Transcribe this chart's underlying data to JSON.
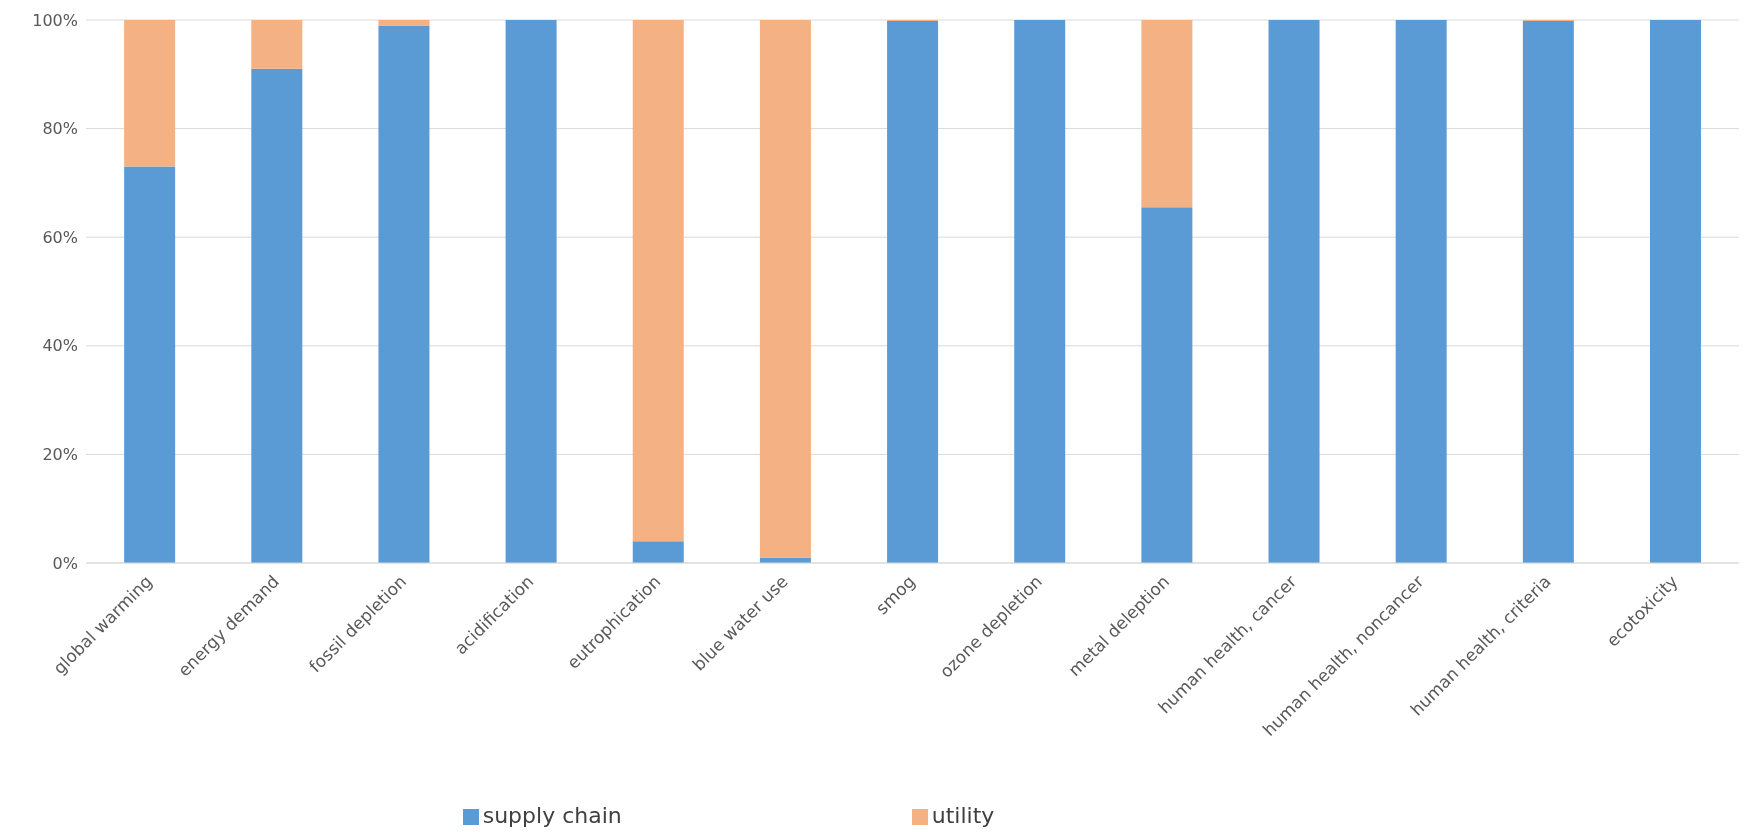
{
  "chart_data": {
    "type": "bar",
    "stacked": true,
    "categories": [
      "global warming",
      "energy demand",
      "fossil depletion",
      "acidification",
      "eutrophication",
      "blue water use",
      "smog",
      "ozone depletion",
      "metal deleption",
      "human health, cancer",
      "human health, noncancer",
      "human health, criteria",
      "ecotoxicity"
    ],
    "series": [
      {
        "name": "supply chain",
        "color": "#5b9bd5",
        "values": [
          73,
          91,
          99,
          100,
          4,
          1,
          99.8,
          100,
          65.5,
          100,
          100,
          99.8,
          100
        ]
      },
      {
        "name": "utility",
        "color": "#f4b183",
        "values": [
          27,
          9,
          1,
          0,
          96,
          99,
          0.2,
          0,
          34.5,
          0,
          0,
          0.2,
          0
        ]
      }
    ],
    "ylim": [
      0,
      100
    ],
    "yticks": [
      {
        "value": 0,
        "label": "0%"
      },
      {
        "value": 20,
        "label": "20%"
      },
      {
        "value": 40,
        "label": "40%"
      },
      {
        "value": 60,
        "label": "60%"
      },
      {
        "value": 80,
        "label": "80%"
      },
      {
        "value": 100,
        "label": "100%"
      }
    ],
    "grid": "y",
    "legend": "bottom"
  }
}
